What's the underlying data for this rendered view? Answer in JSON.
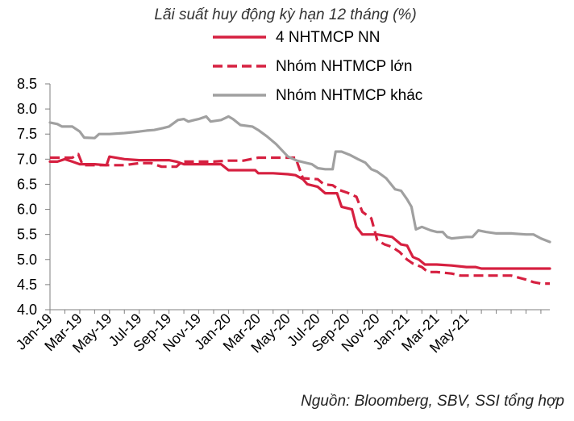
{
  "chart_data": {
    "type": "line",
    "title": "Lãi suất huy động kỳ hạn 12 tháng (%)",
    "source": "Nguồn:  Bloomberg, SBV, SSI tổng hợp",
    "ylim": [
      4.0,
      8.5
    ],
    "yticks": [
      "8.5",
      "8.0",
      "7.5",
      "7.0",
      "6.5",
      "6.0",
      "5.5",
      "5.0",
      "4.5",
      "4.0"
    ],
    "xticks": [
      "Jan-19",
      "Mar-19",
      "May-19",
      "Jul-19",
      "Sep-19",
      "Nov-19",
      "Jan-20",
      "Mar-20",
      "May-20",
      "Jul-20",
      "Sep-20",
      "Nov-20",
      "Jan-21",
      "Mar-21",
      "May-21"
    ],
    "x_unit": "months since Jan-19",
    "grid": false,
    "legend_placement": "top-center",
    "series": [
      {
        "name": "4 NHTMCP NN",
        "color": "#d62040",
        "style": "solid",
        "points": [
          [
            0,
            6.95
          ],
          [
            0.5,
            6.95
          ],
          [
            1,
            7.0
          ],
          [
            1.5,
            6.95
          ],
          [
            2,
            6.9
          ],
          [
            3,
            6.9
          ],
          [
            3.8,
            6.88
          ],
          [
            4,
            7.05
          ],
          [
            5,
            7.0
          ],
          [
            6,
            6.98
          ],
          [
            7,
            6.98
          ],
          [
            8,
            6.98
          ],
          [
            8.5,
            6.95
          ],
          [
            9,
            6.9
          ],
          [
            10,
            6.9
          ],
          [
            11,
            6.9
          ],
          [
            11.5,
            6.9
          ],
          [
            12,
            6.78
          ],
          [
            13,
            6.78
          ],
          [
            13.8,
            6.78
          ],
          [
            14,
            6.72
          ],
          [
            15,
            6.72
          ],
          [
            16,
            6.7
          ],
          [
            16.5,
            6.68
          ],
          [
            17,
            6.6
          ],
          [
            17.3,
            6.5
          ],
          [
            18,
            6.45
          ],
          [
            18.5,
            6.32
          ],
          [
            19.3,
            6.32
          ],
          [
            19.6,
            6.05
          ],
          [
            20.3,
            6.0
          ],
          [
            20.6,
            5.65
          ],
          [
            21,
            5.5
          ],
          [
            22,
            5.5
          ],
          [
            23,
            5.45
          ],
          [
            23.6,
            5.3
          ],
          [
            24,
            5.28
          ],
          [
            24.4,
            5.05
          ],
          [
            24.8,
            5.0
          ],
          [
            25.2,
            4.9
          ],
          [
            26,
            4.9
          ],
          [
            27,
            4.88
          ],
          [
            28,
            4.85
          ],
          [
            28.6,
            4.85
          ],
          [
            29,
            4.82
          ],
          [
            30,
            4.82
          ],
          [
            31,
            4.82
          ],
          [
            32,
            4.82
          ],
          [
            33,
            4.82
          ],
          [
            33.6,
            4.82
          ]
        ]
      },
      {
        "name": "Nhóm NHTMCP lớn",
        "color": "#d62040",
        "style": "dashed",
        "points": [
          [
            0,
            7.03
          ],
          [
            1,
            7.03
          ],
          [
            1.5,
            7.03
          ],
          [
            1.9,
            7.1
          ],
          [
            2.2,
            6.88
          ],
          [
            3,
            6.88
          ],
          [
            4,
            6.88
          ],
          [
            5,
            6.88
          ],
          [
            6,
            6.92
          ],
          [
            6.8,
            6.92
          ],
          [
            7.5,
            6.85
          ],
          [
            8.5,
            6.85
          ],
          [
            8.8,
            6.93
          ],
          [
            9,
            6.95
          ],
          [
            10,
            6.95
          ],
          [
            11,
            6.95
          ],
          [
            12,
            6.97
          ],
          [
            13,
            6.97
          ],
          [
            14,
            7.03
          ],
          [
            15,
            7.03
          ],
          [
            16,
            7.03
          ],
          [
            16.5,
            7.03
          ],
          [
            17,
            6.62
          ],
          [
            18,
            6.6
          ],
          [
            18.4,
            6.5
          ],
          [
            19,
            6.48
          ],
          [
            19.5,
            6.38
          ],
          [
            20,
            6.33
          ],
          [
            20.6,
            6.25
          ],
          [
            21,
            5.95
          ],
          [
            21.6,
            5.82
          ],
          [
            22,
            5.38
          ],
          [
            22.5,
            5.3
          ],
          [
            23,
            5.25
          ],
          [
            23.5,
            5.15
          ],
          [
            24,
            5.0
          ],
          [
            24.4,
            4.92
          ],
          [
            25,
            4.85
          ],
          [
            25.4,
            4.75
          ],
          [
            26,
            4.75
          ],
          [
            27,
            4.72
          ],
          [
            27.6,
            4.68
          ],
          [
            28,
            4.68
          ],
          [
            29,
            4.68
          ],
          [
            30,
            4.68
          ],
          [
            31,
            4.68
          ],
          [
            32,
            4.6
          ],
          [
            32.5,
            4.55
          ],
          [
            33,
            4.52
          ],
          [
            33.6,
            4.52
          ]
        ]
      },
      {
        "name": "Nhóm NHTMCP khác",
        "color": "#a0a0a0",
        "style": "solid",
        "points": [
          [
            0,
            7.73
          ],
          [
            0.5,
            7.7
          ],
          [
            0.8,
            7.65
          ],
          [
            1.5,
            7.65
          ],
          [
            2,
            7.55
          ],
          [
            2.3,
            7.43
          ],
          [
            3,
            7.42
          ],
          [
            3.3,
            7.5
          ],
          [
            4,
            7.5
          ],
          [
            5,
            7.52
          ],
          [
            6,
            7.55
          ],
          [
            6.5,
            7.57
          ],
          [
            7,
            7.58
          ],
          [
            7.6,
            7.62
          ],
          [
            8,
            7.65
          ],
          [
            8.6,
            7.78
          ],
          [
            9,
            7.8
          ],
          [
            9.3,
            7.75
          ],
          [
            9.7,
            7.78
          ],
          [
            10,
            7.8
          ],
          [
            10.5,
            7.85
          ],
          [
            10.8,
            7.75
          ],
          [
            11.5,
            7.78
          ],
          [
            12,
            7.85
          ],
          [
            12.3,
            7.8
          ],
          [
            12.8,
            7.68
          ],
          [
            13.6,
            7.65
          ],
          [
            14,
            7.58
          ],
          [
            14.6,
            7.45
          ],
          [
            15.2,
            7.3
          ],
          [
            16,
            7.05
          ],
          [
            16.6,
            6.97
          ],
          [
            17.6,
            6.9
          ],
          [
            18,
            6.82
          ],
          [
            18.5,
            6.8
          ],
          [
            19,
            6.8
          ],
          [
            19.2,
            7.15
          ],
          [
            19.6,
            7.15
          ],
          [
            20.2,
            7.08
          ],
          [
            20.7,
            7.0
          ],
          [
            21.2,
            6.93
          ],
          [
            21.6,
            6.8
          ],
          [
            22,
            6.75
          ],
          [
            22.6,
            6.62
          ],
          [
            23.2,
            6.4
          ],
          [
            23.6,
            6.37
          ],
          [
            24,
            6.2
          ],
          [
            24.3,
            6.05
          ],
          [
            24.6,
            5.6
          ],
          [
            25,
            5.65
          ],
          [
            25.6,
            5.58
          ],
          [
            26,
            5.55
          ],
          [
            26.4,
            5.55
          ],
          [
            26.7,
            5.45
          ],
          [
            27,
            5.42
          ],
          [
            28,
            5.45
          ],
          [
            28.4,
            5.45
          ],
          [
            28.8,
            5.58
          ],
          [
            29.3,
            5.55
          ],
          [
            30,
            5.52
          ],
          [
            31,
            5.52
          ],
          [
            32,
            5.5
          ],
          [
            32.5,
            5.5
          ],
          [
            33,
            5.42
          ],
          [
            33.6,
            5.35
          ]
        ]
      }
    ]
  }
}
